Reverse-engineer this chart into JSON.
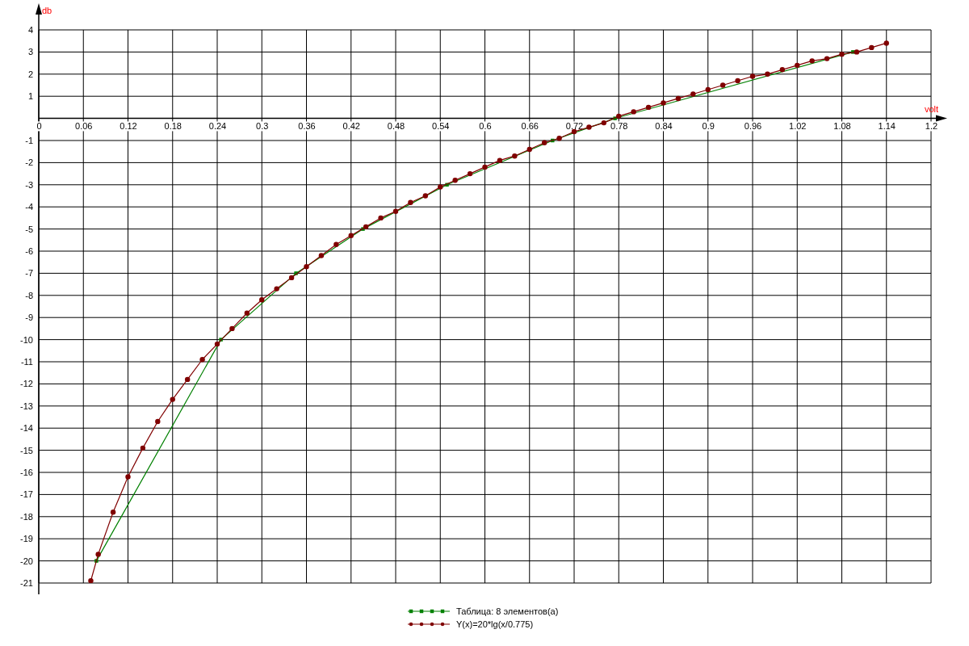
{
  "chart_data": {
    "type": "line",
    "xlabel": "volt",
    "ylabel": "db",
    "xlim": [
      0,
      1.2
    ],
    "ylim": [
      -21,
      4
    ],
    "xticks": [
      0,
      0.06,
      0.12,
      0.18,
      0.24,
      0.3,
      0.36,
      0.42,
      0.48,
      0.54,
      0.6,
      0.66,
      0.72,
      0.78,
      0.84,
      0.9,
      0.96,
      1.02,
      1.08,
      1.14,
      1.2
    ],
    "yticks": [
      4,
      3,
      2,
      1,
      -1,
      -2,
      -3,
      -4,
      -5,
      -6,
      -7,
      -8,
      -9,
      -10,
      -11,
      -12,
      -13,
      -14,
      -15,
      -16,
      -17,
      -18,
      -19,
      -20,
      -21
    ],
    "grid": true,
    "legend": "bottom",
    "series": [
      {
        "name": "Таблица: 8 элементов(а)",
        "color": "#008000",
        "marker": "square",
        "x": [
          0.0775,
          0.245,
          0.346,
          0.436,
          0.549,
          0.691,
          0.775,
          1.095
        ],
        "values": [
          -20,
          -10,
          -7,
          -5,
          -3,
          -1,
          0,
          3
        ]
      },
      {
        "name": "Y(x)=20*lg(x/0.775)",
        "color": "#800000",
        "marker": "circle",
        "x": [
          0.07,
          0.08,
          0.1,
          0.12,
          0.14,
          0.16,
          0.18,
          0.2,
          0.22,
          0.24,
          0.26,
          0.28,
          0.3,
          0.32,
          0.34,
          0.36,
          0.38,
          0.4,
          0.42,
          0.44,
          0.46,
          0.48,
          0.5,
          0.52,
          0.54,
          0.56,
          0.58,
          0.6,
          0.62,
          0.64,
          0.66,
          0.68,
          0.7,
          0.72,
          0.74,
          0.76,
          0.78,
          0.8,
          0.82,
          0.84,
          0.86,
          0.88,
          0.9,
          0.92,
          0.94,
          0.96,
          0.98,
          1,
          1.02,
          1.04,
          1.06,
          1.08,
          1.1,
          1.12,
          1.14
        ],
        "values": [
          -20.9,
          -19.7,
          -17.8,
          -16.2,
          -14.9,
          -13.7,
          -12.7,
          -11.8,
          -10.9,
          -10.2,
          -9.5,
          -8.8,
          -8.2,
          -7.7,
          -7.2,
          -6.7,
          -6.2,
          -5.7,
          -5.3,
          -4.9,
          -4.5,
          -4.2,
          -3.8,
          -3.5,
          -3.1,
          -2.8,
          -2.5,
          -2.2,
          -1.9,
          -1.7,
          -1.4,
          -1.1,
          -0.9,
          -0.6,
          -0.4,
          -0.2,
          0.1,
          0.3,
          0.5,
          0.7,
          0.9,
          1.1,
          1.3,
          1.5,
          1.7,
          1.9,
          2,
          2.2,
          2.4,
          2.6,
          2.7,
          2.9,
          3,
          3.2,
          3.4
        ]
      }
    ]
  }
}
